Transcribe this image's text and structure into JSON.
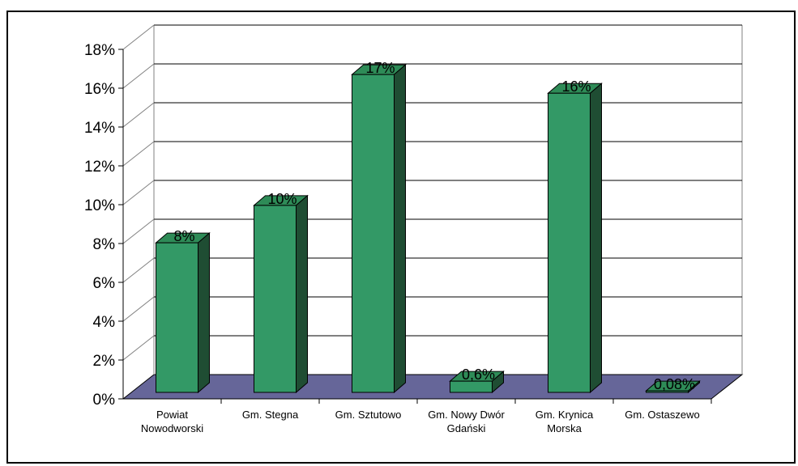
{
  "chart_data": {
    "type": "bar",
    "three_d": true,
    "categories": [
      [
        "Powiat",
        "Nowodworski"
      ],
      [
        "Gm. Stegna"
      ],
      [
        "Gm. Sztutowo"
      ],
      [
        "Gm. Nowy Dwór",
        "Gdański"
      ],
      [
        "Gm. Krynica",
        "Morska"
      ],
      [
        "Gm. Ostaszewo"
      ]
    ],
    "values": [
      8,
      10,
      17,
      0.6,
      16,
      0.08
    ],
    "data_labels": [
      "8%",
      "10%",
      "17%",
      "0,6%",
      "16%",
      "0,08%"
    ],
    "y_ticks": [
      "0%",
      "2%",
      "4%",
      "6%",
      "8%",
      "10%",
      "12%",
      "14%",
      "16%",
      "18%"
    ],
    "ylim": [
      0,
      18
    ],
    "grid": true,
    "colors": {
      "bar_front": "#339966",
      "bar_side": "#1f4d33",
      "bar_top": "#2e8b57",
      "floor": "#666699",
      "gridline": "#000000",
      "wall_edge": "#808080"
    }
  }
}
